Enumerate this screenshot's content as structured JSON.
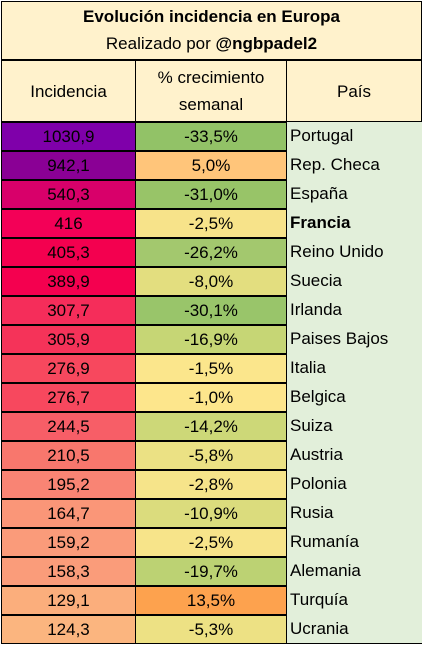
{
  "title": "Evolución incidencia en Europa",
  "subtitle_prefix": "Realizado por ",
  "subtitle_handle": "@ngbpadel2",
  "headers": {
    "incidencia": "Incidencia",
    "crecimiento": "% crecimiento semanal",
    "pais": "País"
  },
  "rows": [
    {
      "incidencia": "1030,9",
      "crecimiento": "-33,5%",
      "pais": "Portugal",
      "inc_color": "#7f00aa",
      "cre_color": "#92c267"
    },
    {
      "incidencia": "942,1",
      "crecimiento": "5,0%",
      "pais": "Rep. Checa",
      "inc_color": "#8a0095",
      "cre_color": "#ffc57a"
    },
    {
      "incidencia": "540,3",
      "crecimiento": "-31,0%",
      "pais": "España",
      "inc_color": "#d8006a",
      "cre_color": "#98c468"
    },
    {
      "incidencia": "416",
      "crecimiento": "-2,5%",
      "pais": "Francia",
      "inc_color": "#f30057",
      "cre_color": "#f7e38a",
      "bold": true
    },
    {
      "incidencia": "405,3",
      "crecimiento": "-26,2%",
      "pais": "Reino Unido",
      "inc_color": "#f3004f",
      "cre_color": "#a3c86e"
    },
    {
      "incidencia": "389,9",
      "crecimiento": "-8,0%",
      "pais": "Suecia",
      "inc_color": "#f4004f",
      "cre_color": "#e3de7f"
    },
    {
      "incidencia": "307,7",
      "crecimiento": "-30,1%",
      "pais": "Irlanda",
      "inc_color": "#f52d5a",
      "cre_color": "#99c56a"
    },
    {
      "incidencia": "305,9",
      "crecimiento": "-16,9%",
      "pais": "Paises Bajos",
      "inc_color": "#f53359",
      "cre_color": "#c6d675"
    },
    {
      "incidencia": "276,9",
      "crecimiento": "-1,5%",
      "pais": "Italia",
      "inc_color": "#f7485e",
      "cre_color": "#fbe68c"
    },
    {
      "incidencia": "276,7",
      "crecimiento": "-1,0%",
      "pais": "Belgica",
      "inc_color": "#f7485e",
      "cre_color": "#fde68c"
    },
    {
      "incidencia": "244,5",
      "crecimiento": "-14,2%",
      "pais": "Suiza",
      "inc_color": "#f75e67",
      "cre_color": "#cdd878"
    },
    {
      "incidencia": "210,5",
      "crecimiento": "-5,8%",
      "pais": "Austria",
      "inc_color": "#f8776d",
      "cre_color": "#ebe184"
    },
    {
      "incidencia": "195,2",
      "crecimiento": "-2,8%",
      "pais": "Polonia",
      "inc_color": "#f98474",
      "cre_color": "#f6e48a"
    },
    {
      "incidencia": "164,7",
      "crecimiento": "-10,9%",
      "pais": "Rusia",
      "inc_color": "#fa9678",
      "cre_color": "#dbdc7d"
    },
    {
      "incidencia": "159,2",
      "crecimiento": "-2,5%",
      "pais": "Rumanía",
      "inc_color": "#fa9b7a",
      "cre_color": "#f7e48a"
    },
    {
      "incidencia": "158,3",
      "crecimiento": "-19,7%",
      "pais": "Alemania",
      "inc_color": "#fa9c7a",
      "cre_color": "#bcd273"
    },
    {
      "incidencia": "129,1",
      "crecimiento": "13,5%",
      "pais": "Turquía",
      "inc_color": "#fbae7c",
      "cre_color": "#fda24e"
    },
    {
      "incidencia": "124,3",
      "crecimiento": "-5,3%",
      "pais": "Ucrania",
      "inc_color": "#fbb57f",
      "cre_color": "#ede184"
    }
  ]
}
